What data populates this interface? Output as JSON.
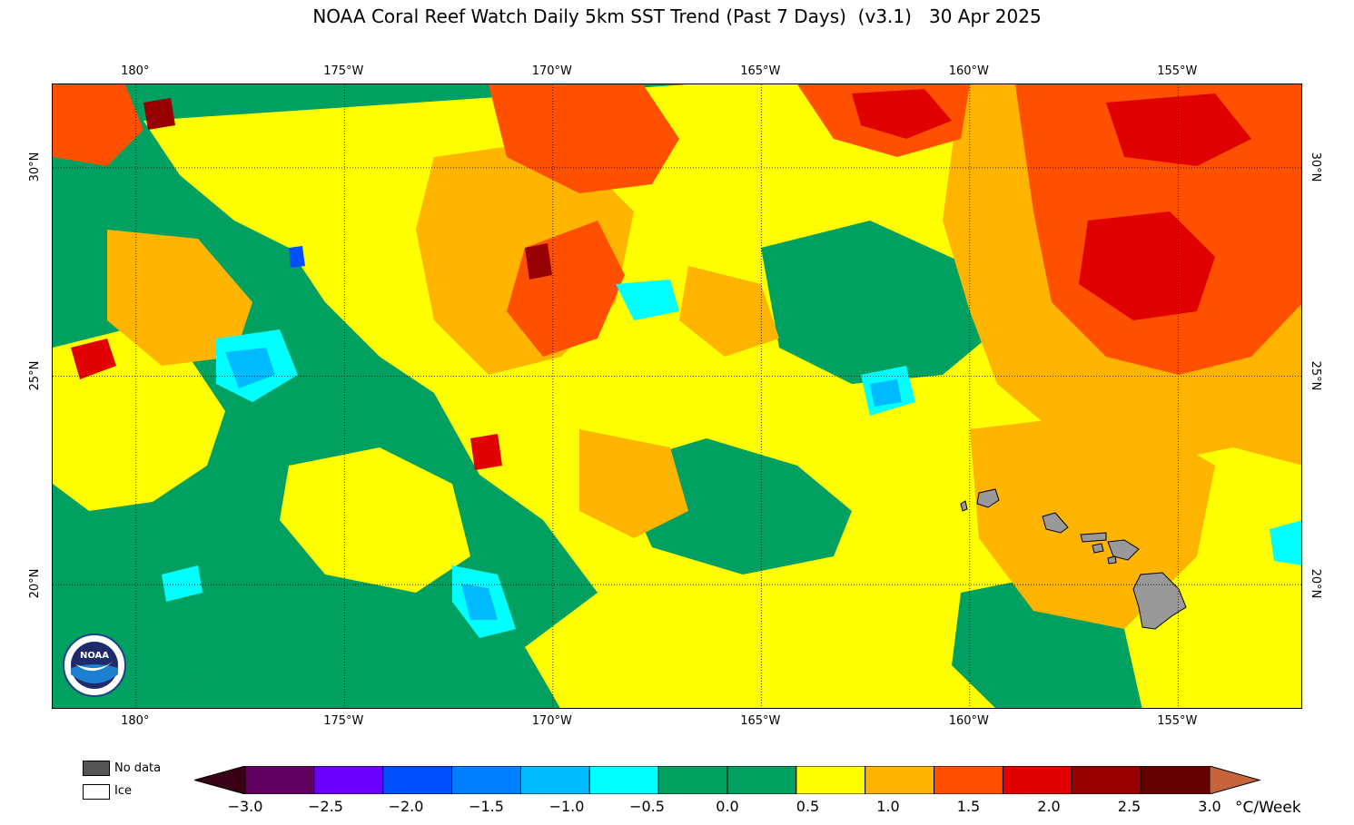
{
  "title": "NOAA Coral Reef Watch Daily 5km SST Trend (Past 7 Days)  (v3.1)   30 Apr 2025",
  "map": {
    "lon_ticks": [
      {
        "label": "180°",
        "lon": -180
      },
      {
        "label": "175°W",
        "lon": -175
      },
      {
        "label": "170°W",
        "lon": -170
      },
      {
        "label": "165°W",
        "lon": -165
      },
      {
        "label": "160°W",
        "lon": -160
      },
      {
        "label": "155°W",
        "lon": -155
      }
    ],
    "lat_ticks": [
      {
        "label": "30°N",
        "lat": 30
      },
      {
        "label": "25°N",
        "lat": 25
      },
      {
        "label": "20°N",
        "lat": 20
      }
    ],
    "lon_range": [
      -182,
      -152
    ],
    "lat_range": [
      17,
      32
    ],
    "land_color": "#999999",
    "grid_style": "dotted"
  },
  "legend": {
    "no_data": {
      "label": "No data",
      "color": "#555555"
    },
    "ice": {
      "label": "Ice",
      "color": "#ffffff"
    }
  },
  "colorbar": {
    "unit": "°C/Week",
    "tick_labels": [
      "−3.0",
      "−2.5",
      "−2.0",
      "−1.5",
      "−1.0",
      "−0.5",
      "0.0",
      "0.5",
      "1.0",
      "1.5",
      "2.0",
      "2.5",
      "3.0"
    ],
    "colors": [
      "#3a0015",
      "#600060",
      "#6a00ff",
      "#0050ff",
      "#0080ff",
      "#00bbff",
      "#00ffff",
      "#00a060",
      "#00a060",
      "#ffff00",
      "#ffb400",
      "#ff5000",
      "#e00000",
      "#960000",
      "#640000",
      "#c8643c"
    ]
  },
  "logo_text": "NOAA"
}
